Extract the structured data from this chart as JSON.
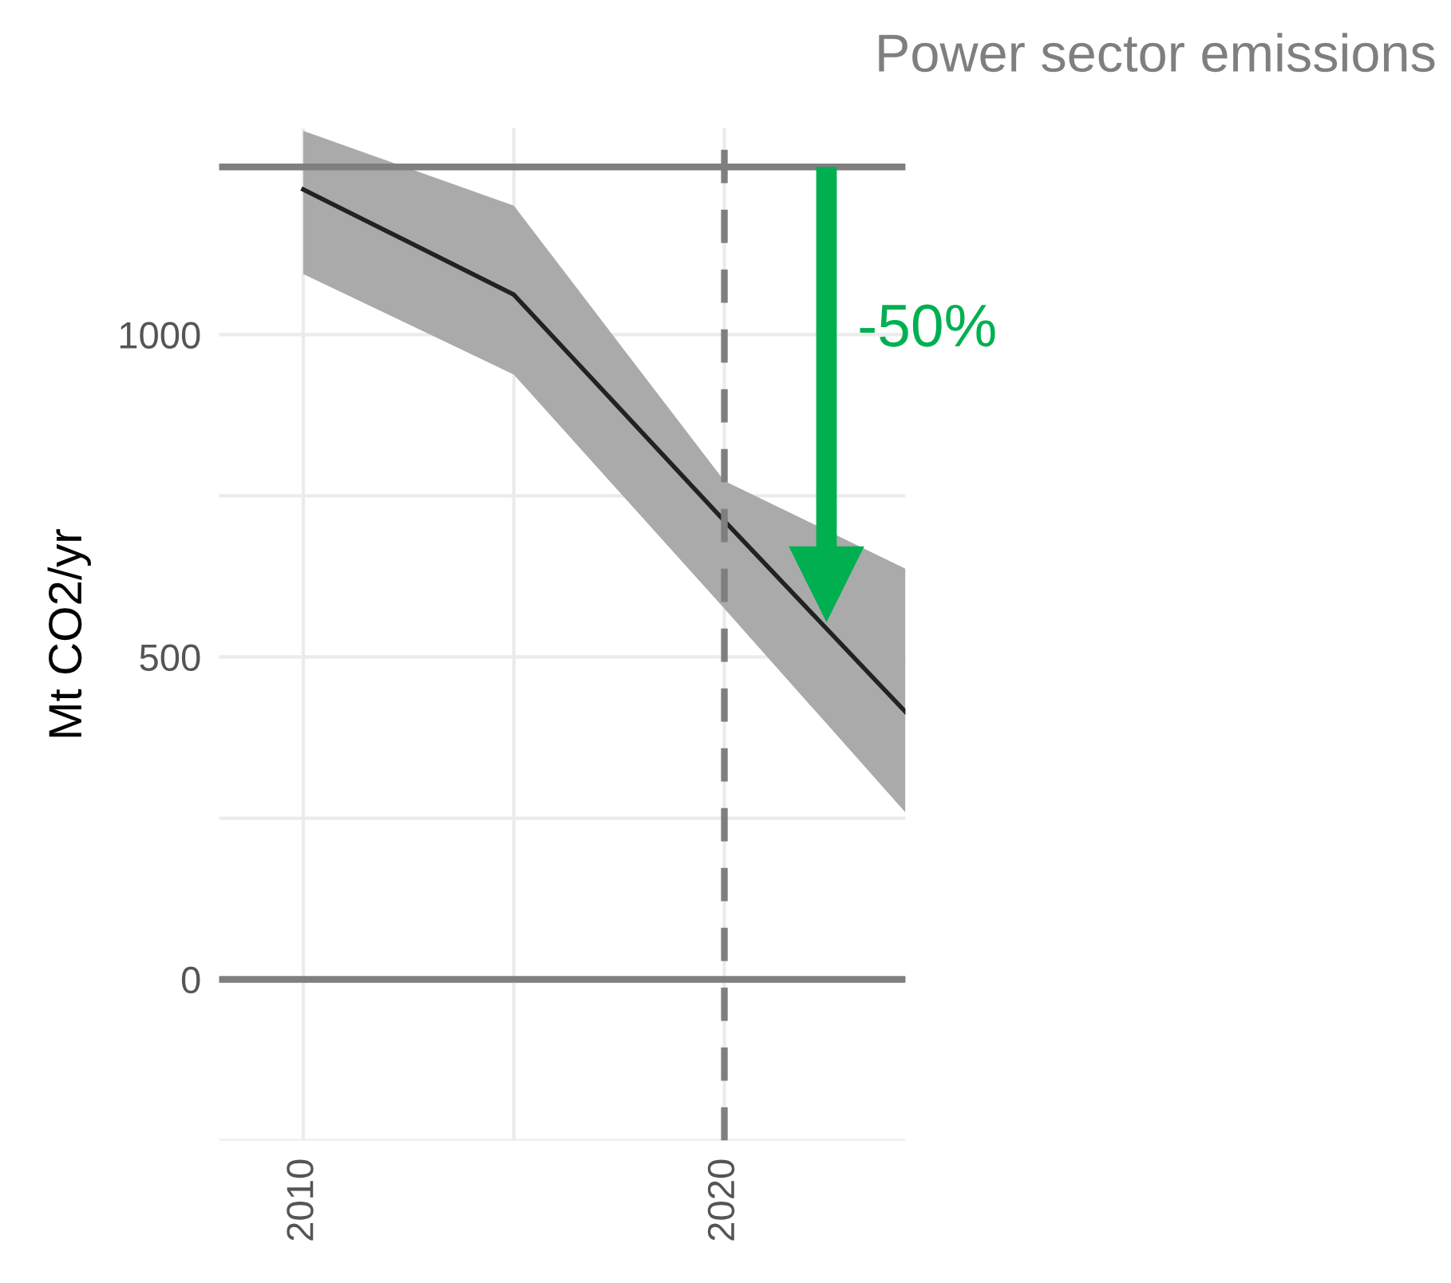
{
  "chart_data": {
    "type": "line",
    "title": "Power sector emissions",
    "ylabel": "Mt CO2/yr",
    "series": [
      {
        "color": "#222222",
        "x": [
          2010,
          2015,
          2020,
          2024.3
        ],
        "values": [
          1225,
          1062,
          711,
          415
        ],
        "lower": [
          1094,
          938,
          575,
          259
        ],
        "upper": [
          1316,
          1200,
          773,
          637
        ]
      }
    ],
    "xlim": [
      2008,
      2024.3
    ],
    "ylim": [
      -250,
      1320
    ],
    "xticks": [
      2010,
      {
        "value": 2015,
        "label": null
      },
      2020
    ],
    "yticks": [
      {
        "value": -250,
        "label": null
      },
      0,
      {
        "value": 250,
        "label": null
      },
      500,
      {
        "value": 750,
        "label": null
      },
      1000
    ],
    "ref_lines": [
      {
        "axis": "y",
        "value": 1260,
        "color": "#7f7f7f",
        "line_style": "solid"
      },
      {
        "axis": "y",
        "value": 0,
        "color": "#7f7f7f",
        "line_style": "solid"
      },
      {
        "axis": "x",
        "value": 2020,
        "color": "#7f7f7f",
        "line_style": "dashed"
      }
    ],
    "annotations": [
      "-50%"
    ],
    "grid": true,
    "marker": "none",
    "line_style": "solid",
    "legend": false
  }
}
